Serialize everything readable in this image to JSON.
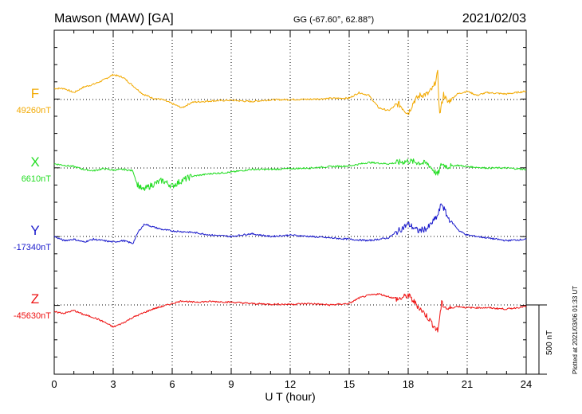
{
  "header": {
    "station": "Mawson (MAW)  [GA]",
    "coords": "GG (-67.60°,  62.88°)",
    "date": "2021/02/03"
  },
  "footer": {
    "plotted": "Plotted at 2021/03/06 01:33 UT",
    "scale_label": "500 nT"
  },
  "chart_data": {
    "type": "line",
    "title": "Mawson (MAW)  [GA]",
    "xlabel": "U T (hour)",
    "ylabel": "",
    "xlim": [
      0,
      24
    ],
    "x_ticks": [
      "0",
      "3",
      "6",
      "9",
      "12",
      "15",
      "18",
      "21",
      "24"
    ],
    "scale_bar_nT": 500,
    "grid": "dotted",
    "series": [
      {
        "name": "F",
        "baseline_label": "49260nT",
        "baseline_nT": 49260,
        "color": "#f2a900",
        "x": [
          0,
          0.5,
          1,
          1.5,
          2,
          2.5,
          3,
          3.5,
          4,
          4.5,
          5,
          5.5,
          6,
          6.5,
          7,
          8,
          9,
          10,
          11,
          12,
          13,
          14,
          15,
          15.5,
          16,
          16.5,
          17,
          17.5,
          18,
          18.3,
          18.6,
          19,
          19.3,
          19.5,
          19.6,
          19.8,
          20,
          20.5,
          21,
          21.5,
          22,
          23,
          24
        ],
        "y": [
          49340,
          49340,
          49310,
          49350,
          49370,
          49400,
          49440,
          49420,
          49360,
          49300,
          49270,
          49260,
          49230,
          49200,
          49240,
          49250,
          49255,
          49245,
          49258,
          49260,
          49262,
          49268,
          49270,
          49310,
          49290,
          49200,
          49180,
          49230,
          49160,
          49250,
          49290,
          49300,
          49350,
          49450,
          49150,
          49300,
          49240,
          49300,
          49320,
          49290,
          49310,
          49300,
          49320
        ]
      },
      {
        "name": "X",
        "baseline_label": "6610nT",
        "baseline_nT": 6610,
        "color": "#22dd22",
        "x": [
          0,
          0.5,
          1,
          1.5,
          2,
          2.5,
          3,
          3.5,
          4,
          4.2,
          4.5,
          5,
          5.5,
          6,
          6.5,
          7,
          8,
          9,
          10,
          11,
          12,
          13,
          14,
          15,
          16,
          17,
          18,
          18.5,
          19,
          19.5,
          19.7,
          20,
          20.5,
          21,
          22,
          23,
          24
        ],
        "y": [
          6640,
          6630,
          6620,
          6600,
          6590,
          6605,
          6595,
          6600,
          6590,
          6500,
          6450,
          6490,
          6520,
          6480,
          6520,
          6550,
          6570,
          6580,
          6600,
          6600,
          6605,
          6610,
          6620,
          6625,
          6650,
          6640,
          6660,
          6650,
          6640,
          6560,
          6640,
          6620,
          6630,
          6620,
          6610,
          6610,
          6600
        ]
      },
      {
        "name": "Y",
        "baseline_label": "-17340nT",
        "baseline_nT": -17340,
        "color": "#1a1acc",
        "x": [
          0,
          0.5,
          1,
          1.5,
          2,
          2.5,
          3,
          3.5,
          4,
          4.3,
          4.6,
          5,
          5.5,
          6,
          7,
          8,
          9,
          10,
          11,
          12,
          13,
          14,
          15,
          16,
          17,
          17.5,
          18,
          18.5,
          19,
          19.5,
          19.7,
          20,
          20.3,
          20.6,
          21,
          22,
          23,
          24
        ],
        "y": [
          -17340,
          -17370,
          -17360,
          -17380,
          -17360,
          -17370,
          -17380,
          -17370,
          -17390,
          -17300,
          -17250,
          -17270,
          -17290,
          -17300,
          -17310,
          -17330,
          -17340,
          -17320,
          -17340,
          -17330,
          -17340,
          -17350,
          -17360,
          -17370,
          -17350,
          -17300,
          -17250,
          -17300,
          -17280,
          -17190,
          -17100,
          -17200,
          -17250,
          -17300,
          -17330,
          -17350,
          -17370,
          -17360
        ]
      },
      {
        "name": "Z",
        "baseline_label": "-45630nT",
        "baseline_nT": -45630,
        "color": "#ee1111",
        "x": [
          0,
          0.5,
          1,
          1.5,
          2,
          2.5,
          3,
          3.5,
          4,
          4.5,
          5,
          5.5,
          6,
          6.5,
          7,
          8,
          9,
          10,
          11,
          12,
          13,
          14,
          15,
          15.5,
          16,
          16.5,
          17,
          17.5,
          18,
          18.5,
          19,
          19.5,
          19.7,
          20,
          20.5,
          21,
          22,
          23,
          24
        ],
        "y": [
          -45680,
          -45690,
          -45670,
          -45700,
          -45720,
          -45750,
          -45790,
          -45760,
          -45720,
          -45690,
          -45660,
          -45640,
          -45620,
          -45600,
          -45610,
          -45605,
          -45610,
          -45620,
          -45625,
          -45625,
          -45620,
          -45630,
          -45620,
          -45580,
          -45560,
          -45550,
          -45570,
          -45590,
          -45560,
          -45640,
          -45720,
          -45820,
          -45620,
          -45660,
          -45640,
          -45650,
          -45650,
          -45660,
          -45640
        ]
      }
    ]
  }
}
